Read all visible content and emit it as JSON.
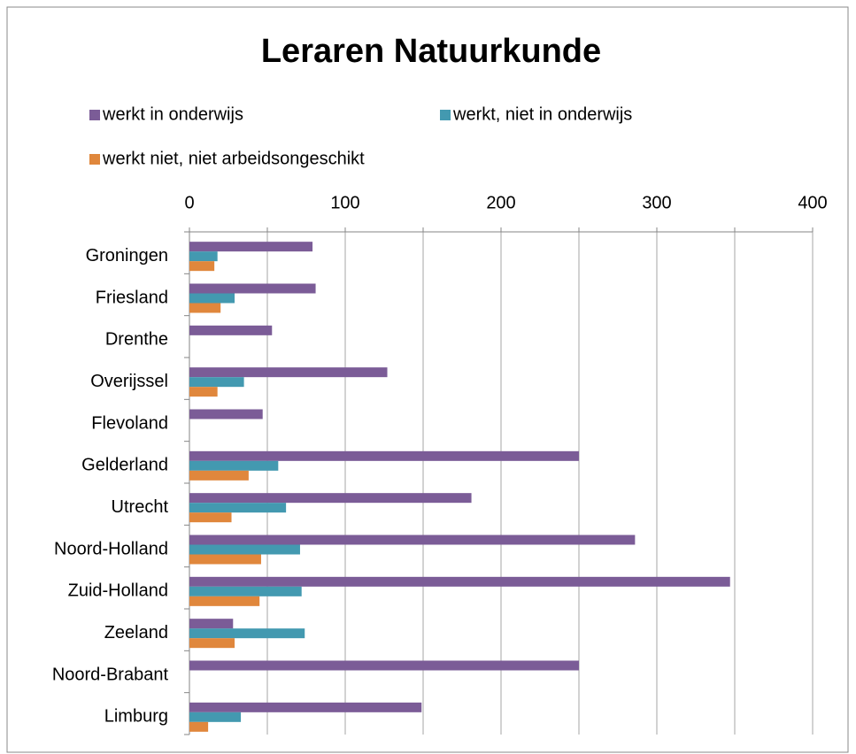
{
  "chart_data": {
    "type": "hbar",
    "title": "Leraren Natuurkunde",
    "categories": [
      "Groningen",
      "Friesland",
      "Drenthe",
      "Overijssel",
      "Flevoland",
      "Gelderland",
      "Utrecht",
      "Noord-Holland",
      "Zuid-Holland",
      "Zeeland",
      "Noord-Brabant",
      "Limburg"
    ],
    "series": [
      {
        "name": "werkt in onderwijs",
        "color": "#7b5c97",
        "values": [
          79,
          81,
          53,
          127,
          47,
          250,
          181,
          286,
          347,
          28,
          250,
          149
        ]
      },
      {
        "name": "werkt, niet in onderwijs",
        "color": "#4399b0",
        "values": [
          18,
          29,
          0,
          35,
          0,
          57,
          62,
          71,
          72,
          74,
          0,
          33
        ]
      },
      {
        "name": "werkt niet, niet arbeidsongeschikt",
        "color": "#e0873c",
        "values": [
          16,
          20,
          0,
          18,
          0,
          38,
          27,
          46,
          45,
          29,
          0,
          12
        ]
      }
    ],
    "xlim": [
      0,
      400
    ],
    "xticks": [
      0,
      100,
      200,
      300,
      400
    ],
    "minor_xticks": [
      50,
      150,
      250,
      350
    ],
    "grid": true,
    "legend": "top"
  }
}
